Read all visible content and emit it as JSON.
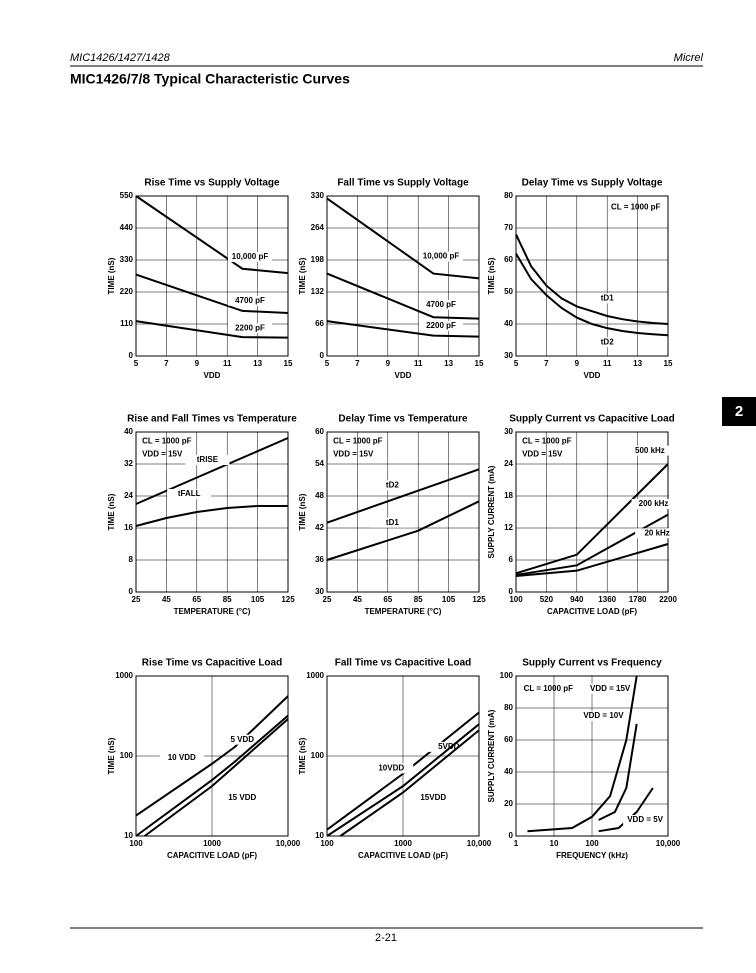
{
  "header": {
    "part": "MIC1426/1427/1428",
    "brand": "Micrel",
    "title": "MIC1426/7/8 Typical Characteristic Curves"
  },
  "tab": "2",
  "footer": "2-21",
  "chart_data": [
    {
      "type": "line",
      "title": "Rise Time vs Supply Voltage",
      "xlabel": "VDD",
      "ylabel": "TIME (nS)",
      "xlim": [
        5,
        15
      ],
      "xticks": [
        5,
        7,
        9,
        11,
        13,
        15
      ],
      "ylim": [
        0,
        550
      ],
      "yticks": [
        0,
        110,
        220,
        330,
        440,
        550
      ],
      "grid": true,
      "series": [
        {
          "name": "10,000 pF",
          "color": "#000",
          "x": [
            5,
            12,
            15
          ],
          "values": [
            550,
            300,
            285
          ]
        },
        {
          "name": "4700 pF",
          "color": "#000",
          "x": [
            5,
            12,
            15
          ],
          "values": [
            280,
            155,
            148
          ]
        },
        {
          "name": "2200 pF",
          "color": "#000",
          "x": [
            5,
            12,
            15
          ],
          "values": [
            120,
            65,
            63
          ]
        }
      ]
    },
    {
      "type": "line",
      "title": "Fall Time vs Supply Voltage",
      "xlabel": "VDD",
      "ylabel": "TIME (nS)",
      "xlim": [
        5,
        15
      ],
      "xticks": [
        5,
        7,
        9,
        11,
        13,
        15
      ],
      "ylim": [
        0,
        330
      ],
      "yticks": [
        0,
        66,
        132,
        198,
        264,
        330
      ],
      "grid": true,
      "series": [
        {
          "name": "10,000 pF",
          "color": "#000",
          "x": [
            5,
            12,
            15
          ],
          "values": [
            325,
            170,
            160
          ]
        },
        {
          "name": "4700 pF",
          "color": "#000",
          "x": [
            5,
            12,
            15
          ],
          "values": [
            170,
            80,
            77
          ]
        },
        {
          "name": "2200 pF",
          "color": "#000",
          "x": [
            5,
            12,
            15
          ],
          "values": [
            72,
            42,
            40
          ]
        }
      ]
    },
    {
      "type": "line",
      "title": "Delay Time vs Supply Voltage",
      "xlabel": "VDD",
      "ylabel": "TIME (nS)",
      "xlim": [
        5,
        15
      ],
      "xticks": [
        5,
        7,
        9,
        11,
        13,
        15
      ],
      "ylim": [
        30,
        80
      ],
      "yticks": [
        30,
        40,
        50,
        60,
        70,
        80
      ],
      "grid": true,
      "annotations": [
        "CL = 1000 pF"
      ],
      "series": [
        {
          "name": "tD1",
          "color": "#000",
          "x": [
            5,
            6,
            7,
            8,
            9,
            10,
            11,
            12,
            13,
            14,
            15
          ],
          "values": [
            68,
            58,
            52,
            48,
            45.5,
            44,
            42.5,
            41.5,
            40.8,
            40.3,
            40
          ]
        },
        {
          "name": "tD2",
          "color": "#000",
          "x": [
            5,
            6,
            7,
            8,
            9,
            10,
            11,
            12,
            13,
            14,
            15
          ],
          "values": [
            62,
            54,
            49,
            45,
            42,
            40,
            38.7,
            37.8,
            37.2,
            36.8,
            36.5
          ]
        }
      ]
    },
    {
      "type": "line",
      "title": "Rise and Fall Times vs Temperature",
      "xlabel": "TEMPERATURE (°C)",
      "ylabel": "TIME (nS)",
      "xlim": [
        25,
        125
      ],
      "xticks": [
        25,
        45,
        65,
        85,
        105,
        125
      ],
      "ylim": [
        0,
        40
      ],
      "yticks": [
        0,
        8,
        16,
        24,
        32,
        40
      ],
      "grid": true,
      "annotations": [
        "CL = 1000 pF",
        "VDD = 15V"
      ],
      "series": [
        {
          "name": "tRISE",
          "color": "#000",
          "x": [
            25,
            125
          ],
          "values": [
            22,
            38.5
          ]
        },
        {
          "name": "tFALL",
          "color": "#000",
          "x": [
            25,
            45,
            65,
            85,
            105,
            125
          ],
          "values": [
            16.5,
            18.5,
            20,
            21,
            21.5,
            21.5
          ]
        }
      ]
    },
    {
      "type": "line",
      "title": "Delay Time vs Temperature",
      "xlabel": "TEMPERATURE (°C)",
      "ylabel": "TIME (nS)",
      "xlim": [
        25,
        125
      ],
      "xticks": [
        25,
        45,
        65,
        85,
        105,
        125
      ],
      "ylim": [
        30,
        60
      ],
      "yticks": [
        30,
        36,
        42,
        48,
        54,
        60
      ],
      "grid": true,
      "annotations": [
        "CL = 1000 pF",
        "VDD = 15V"
      ],
      "series": [
        {
          "name": "tD2",
          "color": "#000",
          "x": [
            25,
            125
          ],
          "values": [
            43,
            53
          ]
        },
        {
          "name": "tD1",
          "color": "#000",
          "x": [
            25,
            85,
            125
          ],
          "values": [
            36,
            41.5,
            47
          ]
        }
      ]
    },
    {
      "type": "line",
      "title": "Supply Current vs Capacitive Load",
      "xlabel": "CAPACITIVE LOAD (pF)",
      "ylabel": "SUPPLY CURRENT (mA)",
      "xlim": [
        100,
        2200
      ],
      "xticks": [
        100,
        520,
        940,
        1360,
        1780,
        2200
      ],
      "ylim": [
        0,
        30
      ],
      "yticks": [
        0,
        6,
        12,
        18,
        24,
        30
      ],
      "grid": true,
      "annotations": [
        "CL = 1000 pF",
        "VDD = 15V"
      ],
      "series": [
        {
          "name": "500 kHz",
          "color": "#000",
          "x": [
            100,
            940,
            2200
          ],
          "values": [
            3.5,
            7,
            24
          ]
        },
        {
          "name": "200 kHz",
          "color": "#000",
          "x": [
            100,
            940,
            2200
          ],
          "values": [
            3.2,
            5,
            14.5
          ]
        },
        {
          "name": "20 kHz",
          "color": "#000",
          "x": [
            100,
            940,
            2200
          ],
          "values": [
            3,
            4,
            9
          ]
        }
      ]
    },
    {
      "type": "line",
      "title": "Rise Time vs Capacitive Load",
      "xlabel": "CAPACITIVE LOAD (pF)",
      "ylabel": "TIME (nS)",
      "xlog": true,
      "ylog": true,
      "xlim": [
        100,
        10000
      ],
      "xticks": [
        100,
        1000,
        {
          "value": 10000,
          "label": "10,000"
        }
      ],
      "ylim": [
        10,
        1000
      ],
      "yticks": [
        10,
        100,
        1000
      ],
      "grid": true,
      "series": [
        {
          "name": "5 VDD",
          "color": "#000",
          "x": [
            100,
            1000,
            2000,
            10000
          ],
          "values": [
            18,
            80,
            130,
            560
          ]
        },
        {
          "name": "10 VDD",
          "color": "#000",
          "x": [
            100,
            1000,
            2000,
            10000
          ],
          "values": [
            10,
            50,
            85,
            320
          ]
        },
        {
          "name": "15 VDD",
          "color": "#000",
          "x": [
            130,
            1000,
            2000,
            10000
          ],
          "values": [
            10,
            42,
            75,
            290
          ]
        }
      ]
    },
    {
      "type": "line",
      "title": "Fall Time vs Capacitive Load",
      "xlabel": "CAPACITIVE LOAD (pF)",
      "ylabel": "TIME (nS)",
      "xlog": true,
      "ylog": true,
      "xlim": [
        100,
        10000
      ],
      "xticks": [
        100,
        1000,
        {
          "value": 10000,
          "label": "10,000"
        }
      ],
      "ylim": [
        10,
        1000
      ],
      "yticks": [
        10,
        100,
        1000
      ],
      "grid": true,
      "series": [
        {
          "name": "5VDD",
          "color": "#000",
          "x": [
            100,
            1000,
            10000
          ],
          "values": [
            12,
            60,
            350
          ]
        },
        {
          "name": "10VDD",
          "color": "#000",
          "x": [
            100,
            1000,
            10000
          ],
          "values": [
            10,
            42,
            250
          ]
        },
        {
          "name": "15VDD",
          "color": "#000",
          "x": [
            150,
            1000,
            10000
          ],
          "values": [
            10,
            35,
            210
          ]
        }
      ]
    },
    {
      "type": "line",
      "title": "Supply Current vs Frequency",
      "xlabel": "FREQUENCY (kHz)",
      "ylabel": "SUPPLY CURRENT (mA)",
      "xlog": true,
      "xlim": [
        1,
        10000
      ],
      "xticks": [
        1,
        10,
        100,
        {
          "value": 10000,
          "label": "10,000"
        }
      ],
      "ylim": [
        0,
        100
      ],
      "yticks": [
        0,
        20,
        40,
        60,
        80,
        100
      ],
      "grid": true,
      "annotations": [
        "CL = 1000 pF"
      ],
      "series": [
        {
          "name": "VDD = 15V",
          "color": "#000",
          "x": [
            2,
            30,
            100,
            300,
            800,
            1500
          ],
          "values": [
            3,
            5,
            12,
            25,
            60,
            100
          ]
        },
        {
          "name": "VDD = 10V",
          "color": "#000",
          "x": [
            150,
            400,
            800,
            1500
          ],
          "values": [
            10,
            15,
            30,
            70
          ]
        },
        {
          "name": "VDD = 5V",
          "color": "#000",
          "x": [
            150,
            500,
            1500,
            4000
          ],
          "values": [
            3,
            5,
            15,
            30
          ]
        }
      ]
    }
  ]
}
